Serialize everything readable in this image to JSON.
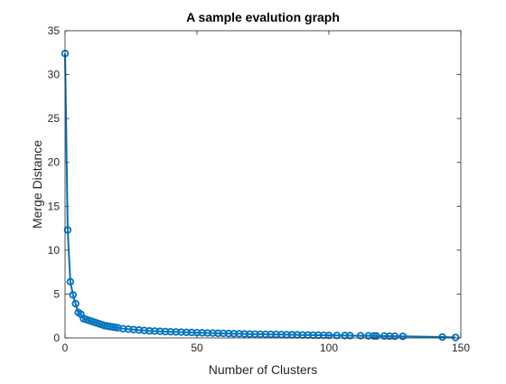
{
  "chart_data": {
    "type": "line",
    "title": "A sample evalution graph",
    "xlabel": "Number of Clusters",
    "ylabel": "Merge Distance",
    "xlim": [
      0,
      150
    ],
    "ylim": [
      0,
      35
    ],
    "xticks": [
      0,
      50,
      100,
      150
    ],
    "yticks": [
      0,
      5,
      10,
      15,
      20,
      25,
      30,
      35
    ],
    "grid": false,
    "marker": "circle",
    "series_color": "#0072BD",
    "x": [
      0,
      1,
      2,
      3,
      4,
      5,
      6,
      7,
      8,
      9,
      10,
      11,
      12,
      13,
      14,
      15,
      16,
      17,
      18,
      19,
      20,
      22,
      24,
      26,
      28,
      30,
      32,
      34,
      36,
      38,
      40,
      42,
      44,
      46,
      48,
      50,
      52,
      54,
      56,
      58,
      60,
      62,
      64,
      66,
      68,
      70,
      72,
      74,
      76,
      78,
      80,
      82,
      84,
      86,
      88,
      90,
      92,
      94,
      96,
      98,
      100,
      103,
      106,
      108,
      112,
      115,
      117,
      118,
      121,
      123,
      125,
      128,
      143,
      148
    ],
    "y": [
      32.4,
      12.3,
      6.4,
      4.9,
      3.9,
      2.9,
      2.7,
      2.2,
      2.1,
      2.0,
      1.9,
      1.8,
      1.7,
      1.6,
      1.5,
      1.4,
      1.35,
      1.3,
      1.25,
      1.2,
      1.15,
      1.05,
      1.0,
      0.95,
      0.9,
      0.85,
      0.8,
      0.78,
      0.75,
      0.72,
      0.7,
      0.68,
      0.66,
      0.64,
      0.62,
      0.6,
      0.58,
      0.56,
      0.55,
      0.53,
      0.52,
      0.5,
      0.48,
      0.47,
      0.45,
      0.44,
      0.43,
      0.42,
      0.41,
      0.4,
      0.39,
      0.38,
      0.37,
      0.36,
      0.35,
      0.34,
      0.33,
      0.32,
      0.31,
      0.3,
      0.29,
      0.28,
      0.27,
      0.26,
      0.25,
      0.24,
      0.23,
      0.22,
      0.21,
      0.2,
      0.19,
      0.18,
      0.1,
      0.05
    ]
  }
}
